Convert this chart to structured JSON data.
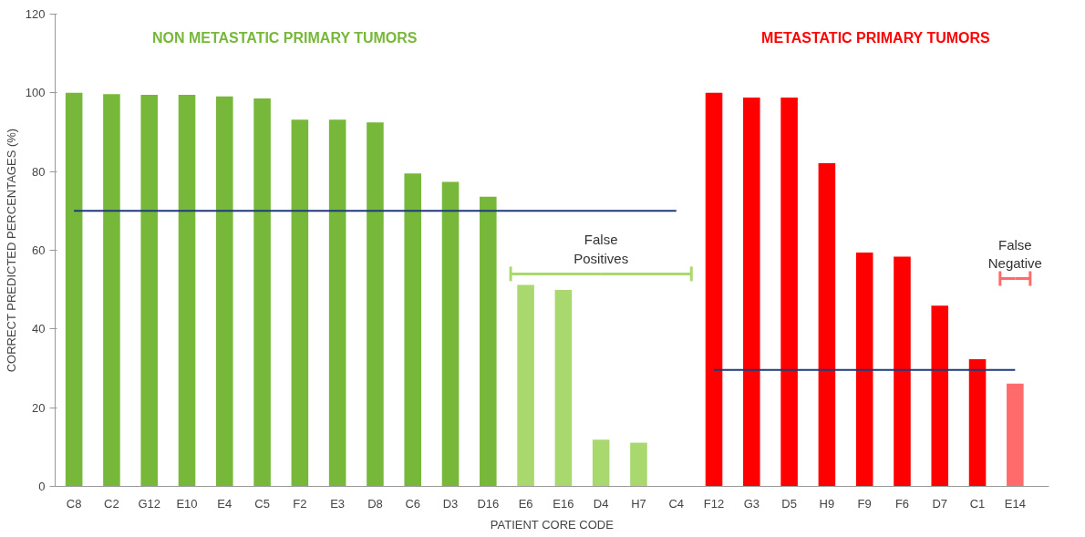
{
  "chart_data": {
    "type": "bar",
    "xlabel": "PATIENT CORE CODE",
    "ylabel": "CORRECT PREDICTED PERCENTAGES (%)",
    "categories": [
      "C8",
      "C2",
      "G12",
      "E10",
      "E4",
      "C5",
      "F2",
      "E3",
      "D8",
      "C6",
      "D3",
      "D16",
      "E6",
      "E16",
      "D4",
      "H7",
      "C4",
      "F12",
      "G3",
      "D5",
      "H9",
      "F9",
      "F6",
      "D7",
      "C1",
      "E14"
    ],
    "ylim": [
      0,
      120
    ],
    "yticks": [
      0,
      20,
      40,
      60,
      80,
      100,
      120
    ],
    "series": [
      {
        "values": [
          100,
          99.7,
          99.5,
          99.5,
          99.1,
          98.6,
          93.2,
          93.2,
          92.5,
          79.5,
          77.4,
          73.6,
          51.2,
          49.9,
          11.9,
          11.1,
          0,
          100,
          98.8,
          98.8,
          82.1,
          59.4,
          58.4,
          45.9,
          32.3,
          26.1
        ],
        "colors": [
          "#77b83a",
          "#77b83a",
          "#77b83a",
          "#77b83a",
          "#77b83a",
          "#77b83a",
          "#77b83a",
          "#77b83a",
          "#77b83a",
          "#77b83a",
          "#77b83a",
          "#77b83a",
          "#a9d86e",
          "#a9d86e",
          "#a9d86e",
          "#a9d86e",
          "#a9d86e",
          "#ff0000",
          "#ff0000",
          "#ff0000",
          "#ff0000",
          "#ff0000",
          "#ff0000",
          "#ff0000",
          "#ff0000",
          "#ff6b6b"
        ]
      },
      {
        "type": "line",
        "color": "#1f3a7a",
        "values": [
          70,
          70,
          70,
          70,
          70,
          70,
          70,
          70,
          70,
          70,
          70,
          70,
          70,
          70,
          70,
          70,
          70,
          null,
          null,
          null,
          null,
          null,
          null,
          null,
          null,
          null
        ]
      },
      {
        "type": "line",
        "color": "#1f3a7a",
        "values": [
          null,
          null,
          null,
          null,
          null,
          null,
          null,
          null,
          null,
          null,
          null,
          null,
          null,
          null,
          null,
          null,
          null,
          29.6,
          29.6,
          29.6,
          29.6,
          29.6,
          29.6,
          29.6,
          29.6,
          29.6
        ]
      }
    ],
    "annotations": [
      "NON METASTATIC PRIMARY TUMORS",
      "METASTATIC PRIMARY TUMORS",
      "False\nPositives",
      "False\nNegative"
    ]
  }
}
